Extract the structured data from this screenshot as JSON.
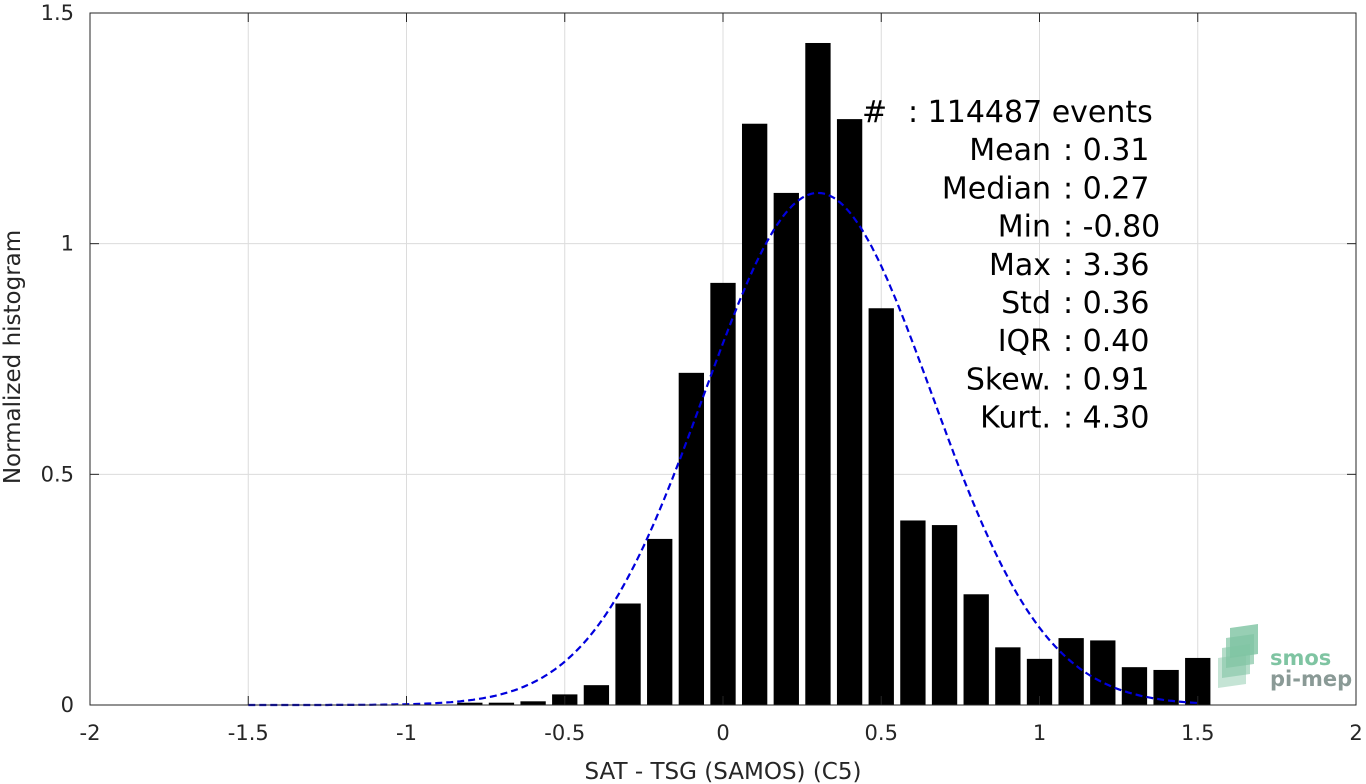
{
  "chart_data": {
    "type": "bar",
    "xlabel": "SAT - TSG (SAMOS) (C5)",
    "ylabel": "Normalized histogram",
    "xlim": [
      -2,
      2
    ],
    "ylim": [
      0,
      1.5
    ],
    "x_ticks": [
      "-2",
      "-1.5",
      "-1",
      "-0.5",
      "0",
      "0.5",
      "1",
      "1.5",
      "2"
    ],
    "y_ticks": [
      "0",
      "0.5",
      "1",
      "1.5"
    ],
    "grid": true,
    "bins": {
      "centers": [
        -0.8,
        -0.7,
        -0.6,
        -0.5,
        -0.4,
        -0.3,
        -0.2,
        -0.1,
        0.0,
        0.1,
        0.2,
        0.3,
        0.4,
        0.5,
        0.6,
        0.7,
        0.8,
        0.9,
        1.0,
        1.1,
        1.2,
        1.3,
        1.4,
        1.5
      ],
      "values": [
        0.005,
        0.005,
        0.008,
        0.023,
        0.043,
        0.22,
        0.36,
        0.72,
        0.915,
        1.26,
        1.11,
        1.435,
        1.27,
        0.86,
        0.4,
        0.39,
        0.24,
        0.125,
        0.1,
        0.145,
        0.14,
        0.082,
        0.076,
        0.102
      ],
      "color": "#000000"
    },
    "fit_curve": {
      "style": "dashed",
      "color": "#0000dd",
      "x_range": [
        -1.5,
        1.5
      ],
      "mean": 0.3,
      "std": 0.36,
      "peak": 1.11
    },
    "stats": [
      {
        "label": "#",
        "value": ": 114487 events"
      },
      {
        "label": "Mean",
        "value": ": 0.31"
      },
      {
        "label": "Median",
        "value": ": 0.27"
      },
      {
        "label": "Min",
        "value": ": -0.80"
      },
      {
        "label": "Max",
        "value": ": 3.36"
      },
      {
        "label": "Std",
        "value": ": 0.36"
      },
      {
        "label": "IQR",
        "value": ": 0.40"
      },
      {
        "label": "Skew.",
        "value": ": 0.91"
      },
      {
        "label": "Kurt.",
        "value": ": 4.30"
      }
    ]
  },
  "logo": {
    "line1": "smos",
    "line2": "pi-mep",
    "color": "#7fc4a2",
    "text_color2": "#8a9a96"
  }
}
